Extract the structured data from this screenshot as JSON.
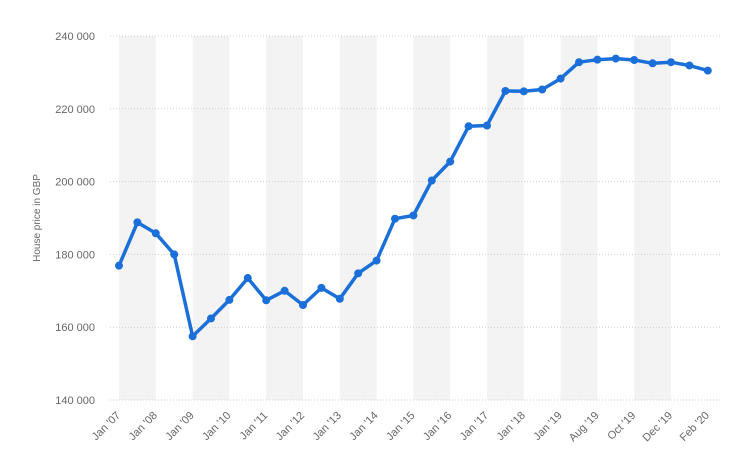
{
  "chart_data": {
    "type": "line",
    "title": "",
    "xlabel": "",
    "ylabel": "House price in GBP",
    "ylim": [
      140000,
      240000
    ],
    "yticks": [
      140000,
      160000,
      180000,
      200000,
      220000,
      240000
    ],
    "ytick_labels": [
      "140 000",
      "160 000",
      "180 000",
      "200 000",
      "220 000",
      "240 000"
    ],
    "xtick_labels": [
      "Jan '07",
      "Jan '08",
      "Jan '09",
      "Jan '10",
      "Jan '11",
      "Jan '12",
      "Jan '13",
      "Jan '14",
      "Jan '15",
      "Jan '16",
      "Jan '17",
      "Jan '18",
      "Jan '19",
      "Aug '19",
      "Oct '19",
      "Dec '19",
      "Feb '20"
    ],
    "xtick_index": [
      0,
      2,
      4,
      6,
      8,
      10,
      12,
      14,
      16,
      18,
      20,
      22,
      24,
      26,
      28,
      30,
      32
    ],
    "grid": true,
    "legend": "none",
    "line_color": "#1a6fd8",
    "band_color": "#f3f3f3",
    "series": [
      {
        "values": [
          176900,
          188800,
          185800,
          180000,
          157500,
          162400,
          167500,
          173500,
          167400,
          170000,
          166100,
          170800,
          167800,
          174800,
          178300,
          189800,
          190700,
          200300,
          205500,
          215200,
          215400,
          224900,
          224800,
          225300,
          228300,
          232800,
          233500,
          233800,
          233400,
          232500,
          232800,
          231900,
          230500
        ]
      }
    ]
  }
}
